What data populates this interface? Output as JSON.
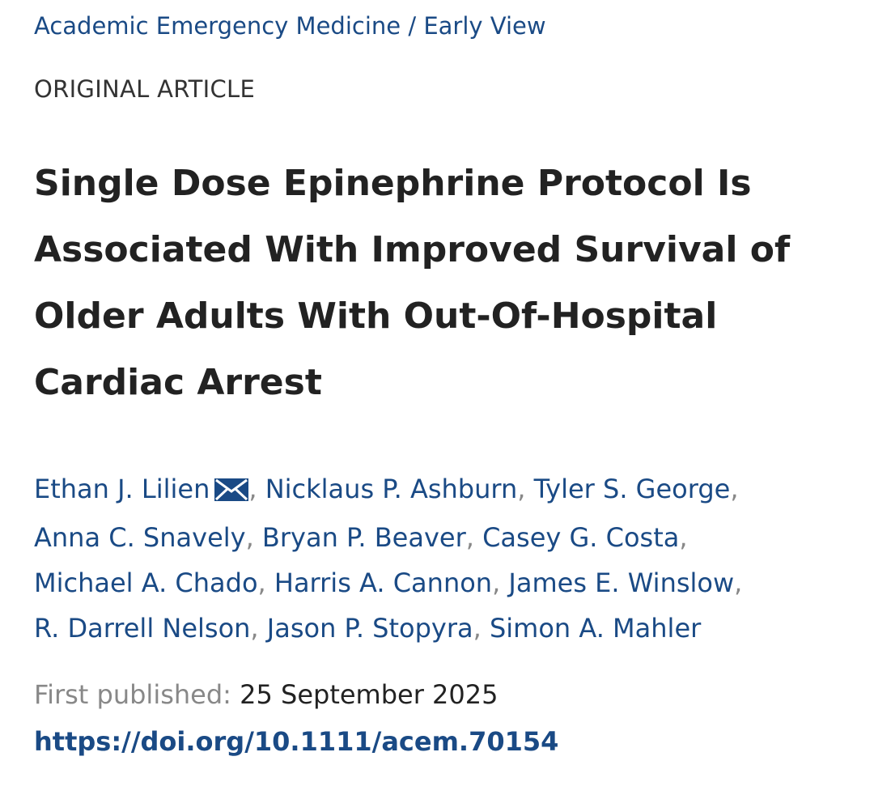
{
  "breadcrumb": {
    "journal": "Academic Emergency Medicine",
    "separator": " / ",
    "section": "Early View"
  },
  "article_type": "ORIGINAL ARTICLE",
  "title": "Single Dose Epinephrine Protocol Is Associated With Improved Survival of Older Adults With Out-Of-Hospital Cardiac Arrest",
  "authors": [
    "Ethan J. Lilien",
    "Nicklaus P. Ashburn",
    "Tyler S. George",
    "Anna C. Snavely",
    "Bryan P. Beaver",
    "Casey G. Costa",
    "Michael A. Chado",
    "Harris A. Cannon",
    "James E. Winslow",
    "R. Darrell Nelson",
    "Jason P. Stopyra",
    "Simon A. Mahler"
  ],
  "corresponding_author_icon": "mail-icon",
  "separator": ", ",
  "published": {
    "label": "First published:",
    "date": "25 September 2025"
  },
  "doi": "https://doi.org/10.1111/acem.70154",
  "colors": {
    "link": "#1a4a85",
    "text": "#222222",
    "muted": "#888888"
  }
}
